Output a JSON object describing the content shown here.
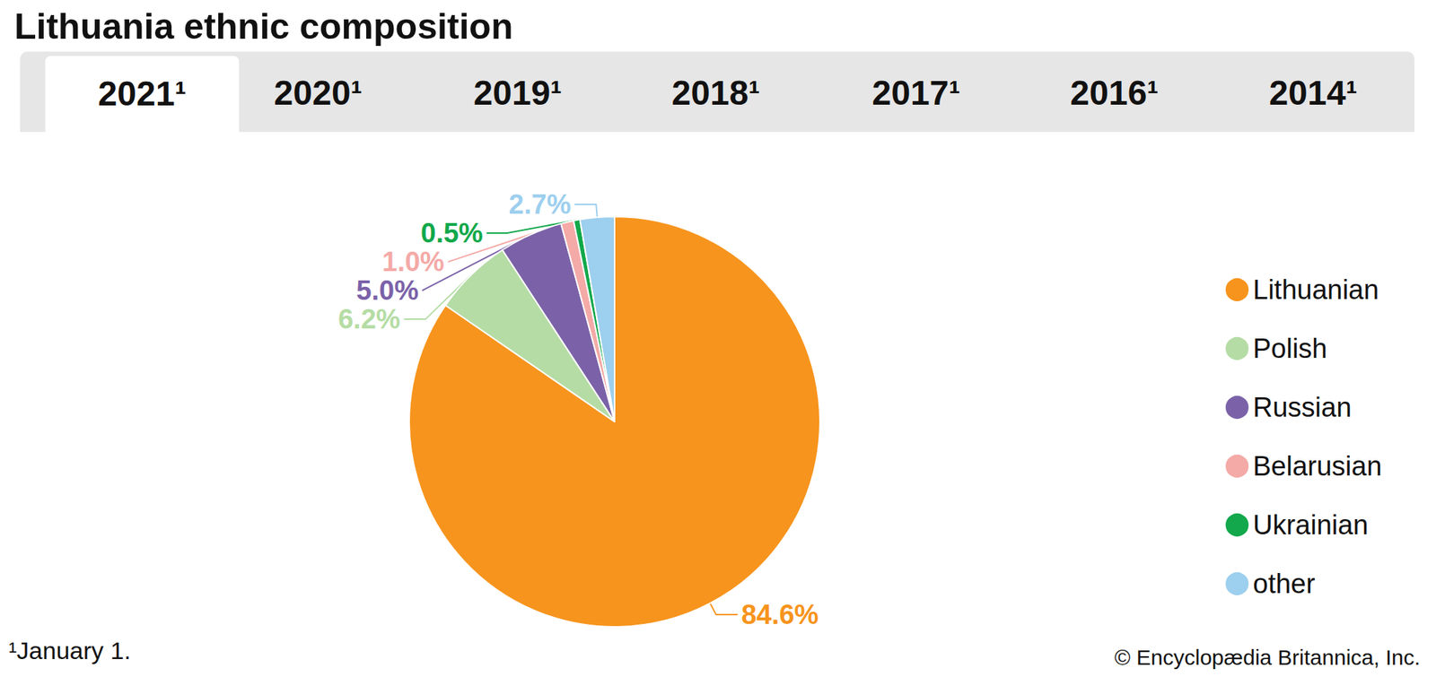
{
  "chart_data": {
    "type": "pie",
    "title": "Lithuania ethnic composition",
    "categories": [
      "Lithuanian",
      "Polish",
      "Russian",
      "Belarusian",
      "Ukrainian",
      "other"
    ],
    "values": [
      84.6,
      6.2,
      5.0,
      1.0,
      0.5,
      2.7
    ],
    "value_labels": [
      "84.6%",
      "6.2%",
      "5.0%",
      "1.0%",
      "0.5%",
      "2.7%"
    ],
    "colors": [
      "#f7941d",
      "#b5dca5",
      "#7b62a8",
      "#f4aaa7",
      "#12a84b",
      "#9dcfee"
    ],
    "data_labels": true,
    "legend": "right"
  },
  "tabs": [
    "2021¹",
    "2020¹",
    "2019¹",
    "2018¹",
    "2017¹",
    "2016¹",
    "2014¹"
  ],
  "footnote": "¹January 1.",
  "source": "© Encyclopædia Britannica, Inc."
}
